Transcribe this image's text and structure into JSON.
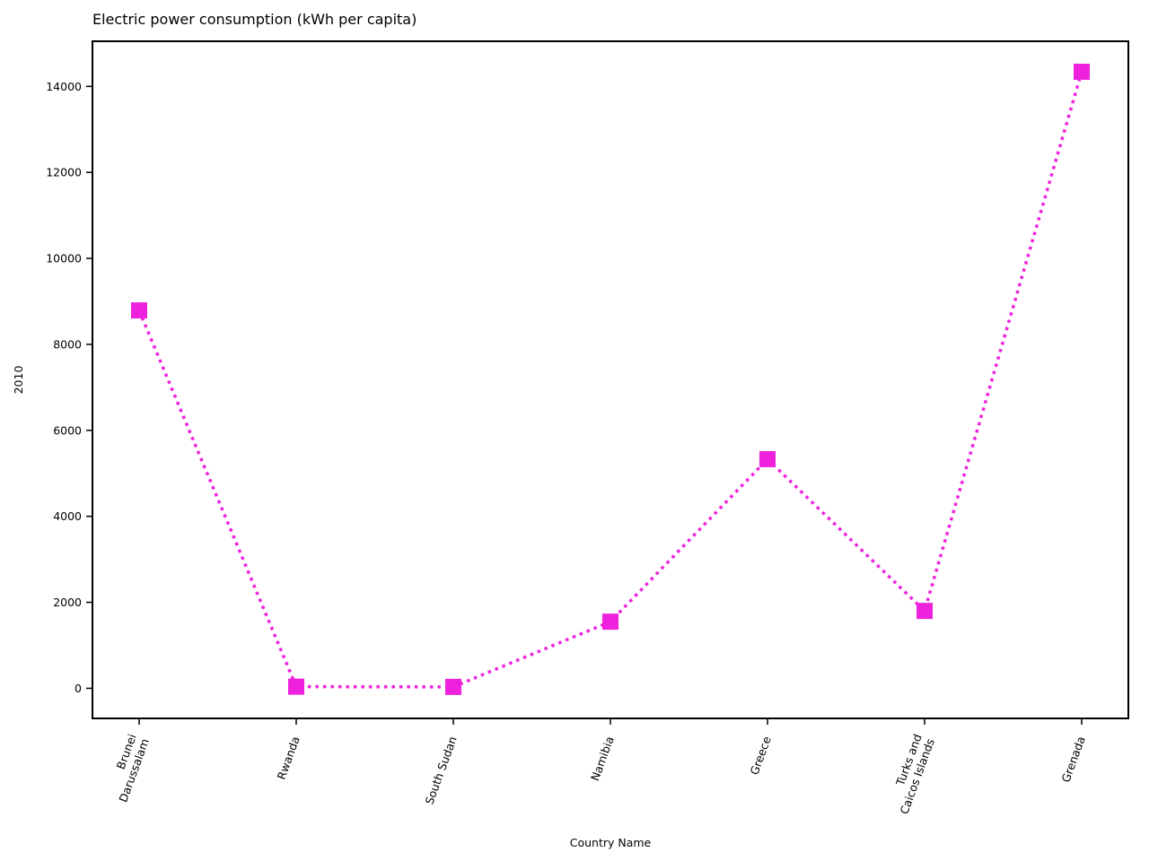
{
  "chart_data": {
    "type": "line",
    "title": "Electric power consumption (kWh per capita)",
    "xlabel": "Country Name",
    "ylabel": "2010",
    "categories": [
      "Brunei\nDarussalam",
      "Rwanda",
      "South Sudan",
      "Namibia",
      "Greece",
      "Turks and\nCaicos Islands",
      "Grenada"
    ],
    "series": [
      {
        "values": [
          8790,
          38,
          33,
          1550,
          5330,
          1800,
          14340
        ]
      }
    ],
    "ylim": [
      -700,
      15050
    ],
    "yticks": [
      0,
      2000,
      4000,
      6000,
      8000,
      10000,
      12000,
      14000
    ],
    "line_style": "dotted",
    "marker": "square",
    "color": "#ee22dd",
    "grid": false
  }
}
